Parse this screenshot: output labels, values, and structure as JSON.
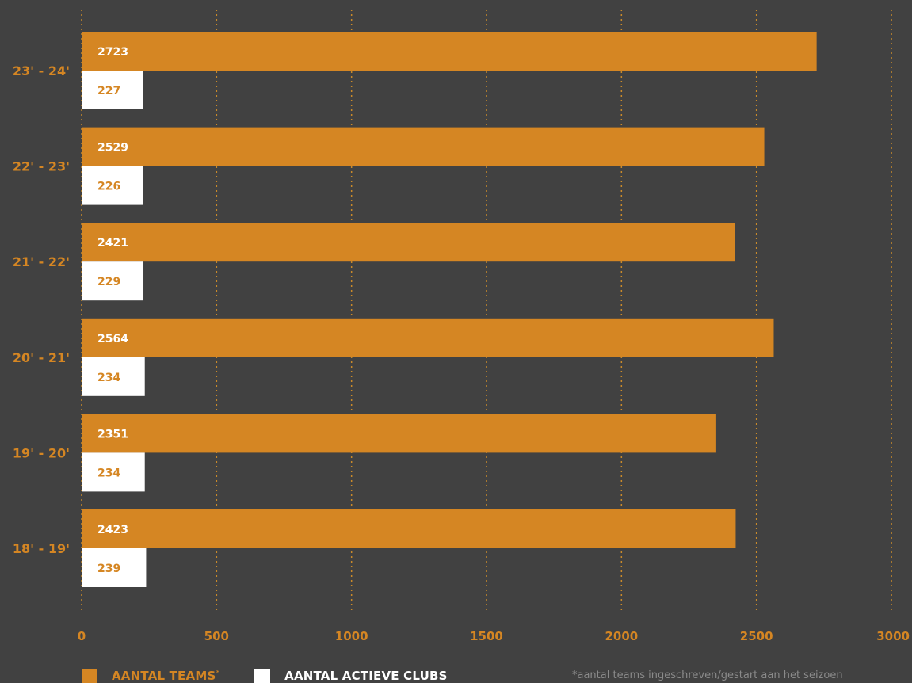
{
  "colors": {
    "background": "#414141",
    "teams": "#d58623",
    "clubs": "#ffffff",
    "grid": "#c98a2a",
    "footnote": "#8a8a8a"
  },
  "chart_data": {
    "type": "bar",
    "orientation": "horizontal",
    "categories": [
      "23' - 24'",
      "22' - 23'",
      "21' - 22'",
      "20' - 21'",
      "19' - 20'",
      "18' - 19'"
    ],
    "series": [
      {
        "name": "AANTAL TEAMS*",
        "values": [
          2723,
          2529,
          2421,
          2564,
          2351,
          2423
        ]
      },
      {
        "name": "AANTAL ACTIEVE CLUBS",
        "values": [
          227,
          226,
          229,
          234,
          234,
          239
        ]
      }
    ],
    "xlim": [
      0,
      3000
    ],
    "xticks": [
      0,
      500,
      1000,
      1500,
      2000,
      2500,
      3000
    ],
    "grid": true,
    "legend_position": "bottom-left"
  },
  "legend": {
    "teams_label": "AANTAL TEAMS",
    "teams_mark": "*",
    "clubs_label": "AANTAL ACTIEVE CLUBS"
  },
  "footnote": "*aantal teams ingeschreven/gestart aan het seizoen"
}
